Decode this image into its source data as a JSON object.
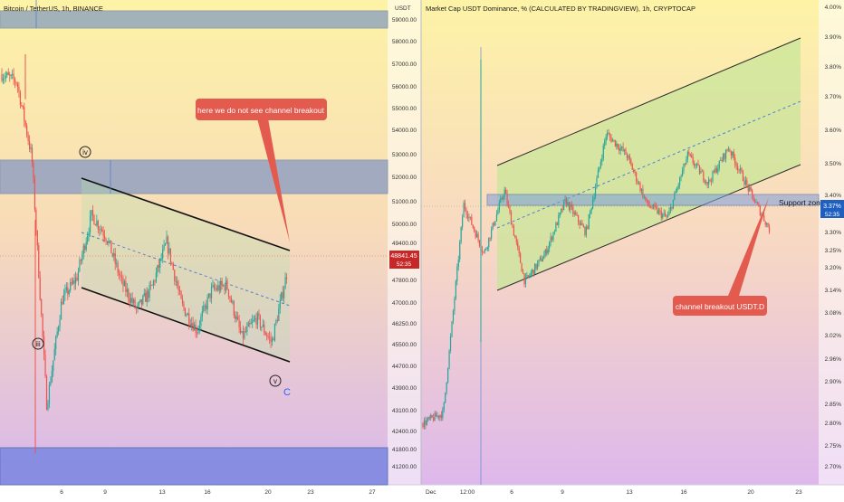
{
  "left": {
    "title": "Bitcoin / TetherUS, 1h, BINANCE",
    "unit": "USDT",
    "price_ticks": [
      "59000.00",
      "58000.00",
      "57000.00",
      "56000.00",
      "55000.00",
      "54000.00",
      "53000.00",
      "52000.00",
      "51000.00",
      "50000.00",
      "49400.00",
      "47800.00",
      "47000.00",
      "46250.00",
      "45500.00",
      "44700.00",
      "43900.00",
      "43100.00",
      "42400.00",
      "41800.00",
      "41200.00"
    ],
    "date_ticks": [
      "6",
      "9",
      "13",
      "16",
      "20",
      "23",
      "27"
    ],
    "last_price": "48841.45",
    "countdown": "52:35",
    "callout": "here we do not see channel breakout",
    "wave_labels": {
      "iii": "iii",
      "iv": "iv",
      "v": "v",
      "c": "C"
    }
  },
  "right": {
    "title": "Market Cap USDT Dominance, % (CALCULATED BY TRADINGVIEW), 1h, CRYPTOCAP",
    "pct_ticks": [
      "4.00%",
      "3.90%",
      "3.80%",
      "3.70%",
      "3.60%",
      "3.50%",
      "3.40%",
      "3.30%",
      "3.25%",
      "3.20%",
      "3.14%",
      "3.08%",
      "3.02%",
      "2.96%",
      "2.90%",
      "2.85%",
      "2.80%",
      "2.75%",
      "2.70%"
    ],
    "date_ticks": [
      "Dec",
      "12:00",
      "6",
      "9",
      "13",
      "16",
      "20",
      "23"
    ],
    "last_value": "3.37%",
    "countdown": "52:35",
    "callout": "channel breakout USDT.D",
    "zone_label": "Support zon"
  },
  "colors": {
    "up": "#26a69a",
    "down": "#ef5350",
    "zone": "#5b7ec7",
    "channel_fill": "#c9e69a",
    "callout": "#e35a4f",
    "wave_c": "#2962ff",
    "price_tag_left": "#c62828",
    "price_tag_right": "#1f5fbf"
  },
  "chart_data": [
    {
      "type": "candlestick",
      "title": "Bitcoin / TetherUS, 1h, BINANCE",
      "ylabel": "USDT",
      "ylim": [
        41000,
        59500
      ],
      "x_ticks": [
        "6",
        "9",
        "13",
        "16",
        "20",
        "23",
        "27"
      ],
      "last_value": 48841.45,
      "approx_close_path": [
        {
          "x": "4",
          "y": 56800
        },
        {
          "x": "5",
          "y": 56500
        },
        {
          "x": "5.5",
          "y": 53500
        },
        {
          "x": "5.6",
          "y": 43600
        },
        {
          "x": "6",
          "y": 47800
        },
        {
          "x": "7",
          "y": 48700
        },
        {
          "x": "8",
          "y": 51200
        },
        {
          "x": "9",
          "y": 50300
        },
        {
          "x": "10",
          "y": 48500
        },
        {
          "x": "11",
          "y": 47400
        },
        {
          "x": "12",
          "y": 48300
        },
        {
          "x": "13",
          "y": 50100
        },
        {
          "x": "14",
          "y": 47600
        },
        {
          "x": "15",
          "y": 46600
        },
        {
          "x": "16",
          "y": 48200
        },
        {
          "x": "17",
          "y": 48400
        },
        {
          "x": "18",
          "y": 46300
        },
        {
          "x": "19",
          "y": 47100
        },
        {
          "x": "20",
          "y": 46100
        },
        {
          "x": "21",
          "y": 48841
        }
      ],
      "zones_usdt": [
        [
          58700,
          59500
        ],
        [
          51200,
          52900
        ],
        [
          41000,
          41900
        ]
      ],
      "channel": "falling channel, upper line ~51600 → ~49000, lower line ~47200 → ~44800",
      "annotations": [
        "iii",
        "iv",
        "v",
        "C",
        "here we do not see channel breakout"
      ]
    },
    {
      "type": "candlestick",
      "title": "Market Cap USDT Dominance, % (CALCULATED BY TRADINGVIEW), 1h, CRYPTOCAP",
      "ylabel": "%",
      "ylim": [
        2.67,
        4.0
      ],
      "x_ticks": [
        "Dec",
        "12:00",
        "6",
        "9",
        "13",
        "16",
        "20",
        "23"
      ],
      "last_value": 3.37,
      "approx_close_path": [
        {
          "x": "Dec",
          "y": 2.82
        },
        {
          "x": "12:00",
          "y": 2.85
        },
        {
          "x": "12:00+",
          "y": 3.44
        },
        {
          "x": "5",
          "y": 3.3
        },
        {
          "x": "6",
          "y": 3.48
        },
        {
          "x": "7",
          "y": 3.22
        },
        {
          "x": "9",
          "y": 3.3
        },
        {
          "x": "11",
          "y": 3.45
        },
        {
          "x": "12",
          "y": 3.36
        },
        {
          "x": "13",
          "y": 3.64
        },
        {
          "x": "14",
          "y": 3.58
        },
        {
          "x": "15",
          "y": 3.44
        },
        {
          "x": "16",
          "y": 3.4
        },
        {
          "x": "18",
          "y": 3.58
        },
        {
          "x": "19",
          "y": 3.5
        },
        {
          "x": "20",
          "y": 3.6
        },
        {
          "x": "21",
          "y": 3.48
        },
        {
          "x": "22",
          "y": 3.37
        }
      ],
      "support_zone_pct": [
        3.37,
        3.41
      ],
      "channel": "rising channel, lower line ~3.14 → ~3.40, upper line ~3.49 → ~3.90",
      "annotations": [
        "channel breakout USDT.D",
        "Support zon"
      ]
    }
  ]
}
